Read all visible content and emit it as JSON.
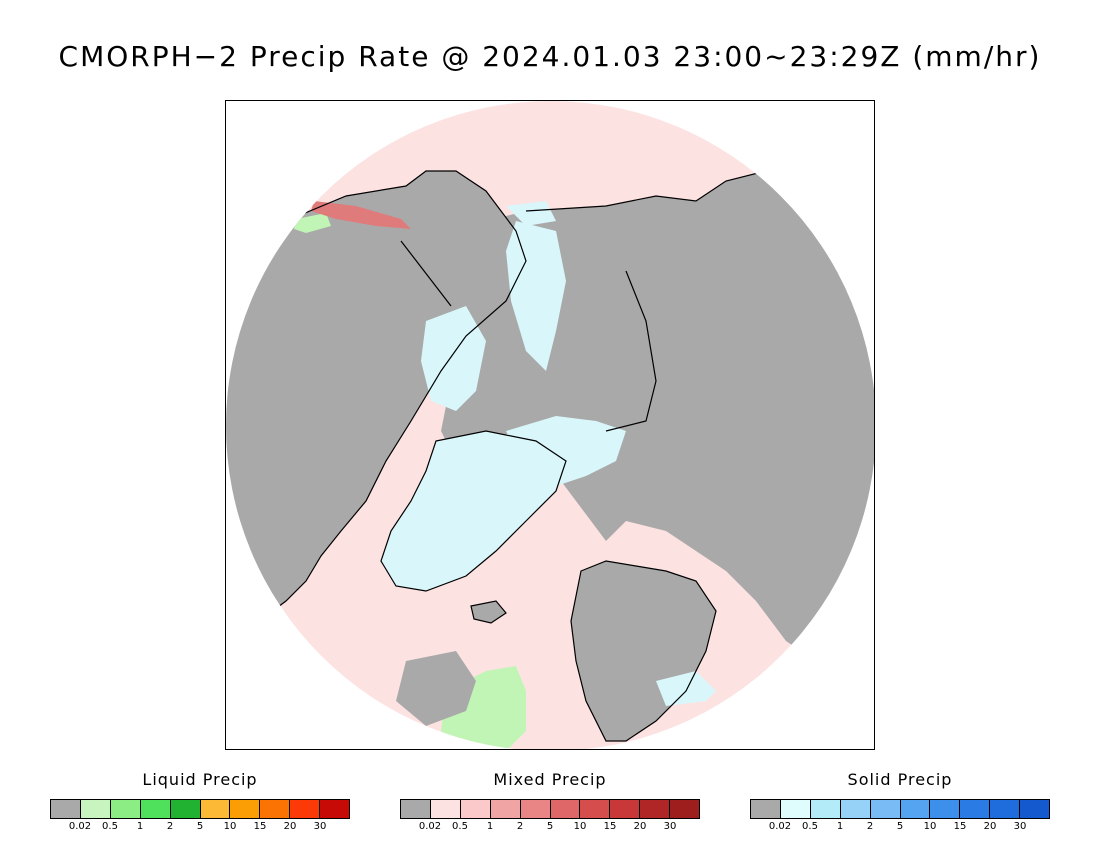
{
  "title": "CMORPH−2 Precip Rate @ 2024.01.03 23:00~23:29Z (mm/hr)",
  "map": {
    "projection": "north-polar-stereographic",
    "colors": {
      "no_precip": "#a9a9a9",
      "background_mixed": "#fde2e2",
      "solid_light": "#d9f7fb",
      "liquid_light": "#c1f5b5",
      "mixed_heavy": "#e07b7b",
      "coast": "#000000",
      "frame_bg": "#ffffff"
    }
  },
  "legends": [
    {
      "title": "Liquid Precip",
      "colors": [
        "#a9a9a9",
        "#c8f5bf",
        "#8ced84",
        "#4fe15c",
        "#22b231",
        "#fbb936",
        "#fb9e06",
        "#fb7403",
        "#fb3a08",
        "#c80a06"
      ],
      "ticks": [
        "0.02",
        "0.5",
        "1",
        "2",
        "5",
        "10",
        "15",
        "20",
        "30"
      ]
    },
    {
      "title": "Mixed Precip",
      "colors": [
        "#a9a9a9",
        "#fde2e2",
        "#fbc9c9",
        "#f1a4a4",
        "#e98585",
        "#e06767",
        "#d54d4d",
        "#c83838",
        "#b02525",
        "#9e1e1e"
      ],
      "ticks": [
        "0.02",
        "0.5",
        "1",
        "2",
        "5",
        "10",
        "15",
        "20",
        "30"
      ]
    },
    {
      "title": "Solid Precip",
      "colors": [
        "#a9a9a9",
        "#e0fdfd",
        "#b3ecf8",
        "#96d1f8",
        "#78bbf5",
        "#55a4f2",
        "#3d8fec",
        "#2a7ce4",
        "#1f6cdc",
        "#1459cd"
      ],
      "ticks": [
        "0.02",
        "0.5",
        "1",
        "2",
        "5",
        "10",
        "15",
        "20",
        "30"
      ]
    }
  ]
}
